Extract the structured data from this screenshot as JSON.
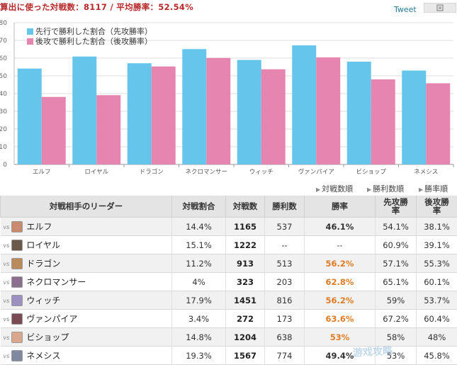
{
  "header": {
    "title": "算出に使った対戦数：8117 / 平均勝率：52.54%",
    "tweet_label": "Tweet",
    "share_icon": "share-icon"
  },
  "colors": {
    "first": "#66c5ea",
    "second": "#e585b0",
    "rate_high": "#e07b25",
    "title": "#b8292a"
  },
  "chart_data": {
    "type": "bar",
    "categories": [
      "エルフ",
      "ロイヤル",
      "ドラゴン",
      "ネクロマンサー",
      "ウィッチ",
      "ヴァンパイア",
      "ビショップ",
      "ネメシス"
    ],
    "series": [
      {
        "name": "先行で勝利した割合（先攻勝率）",
        "values": [
          54.1,
          60.9,
          57.1,
          65.1,
          59,
          67.2,
          58,
          53
        ]
      },
      {
        "name": "後攻で勝利した割合（後攻勝率）",
        "values": [
          38.1,
          39.1,
          55.3,
          60.1,
          53.7,
          60.4,
          48,
          45.8
        ]
      }
    ],
    "ylim": [
      0,
      80
    ],
    "yticks": [
      0,
      10,
      20,
      30,
      40,
      50,
      60,
      70,
      80
    ],
    "grid": true,
    "legend_position": "top-left"
  },
  "sort_links": [
    "対戦数順",
    "勝利数順",
    "勝率順"
  ],
  "table": {
    "headers": [
      "対戦相手のリーダー",
      "対戦割合",
      "対戦数",
      "勝利数",
      "勝率",
      "先攻勝率",
      "後攻勝率"
    ],
    "rows": [
      {
        "vs": "vs",
        "leader": "エルフ",
        "share": "14.4%",
        "matches": "1165",
        "wins": "537",
        "rate": "46.1%",
        "first": "54.1%",
        "second": "38.1%",
        "rate_level": "lo",
        "avatar_color": "#c98b6b"
      },
      {
        "vs": "vs",
        "leader": "ロイヤル",
        "share": "15.1%",
        "matches": "1222",
        "wins": "--",
        "rate": "--",
        "first": "60.9%",
        "second": "39.1%",
        "rate_level": "none",
        "avatar_color": "#6b5a4a"
      },
      {
        "vs": "vs",
        "leader": "ドラゴン",
        "share": "11.2%",
        "matches": "913",
        "wins": "513",
        "rate": "56.2%",
        "first": "57.1%",
        "second": "55.3%",
        "rate_level": "hi",
        "avatar_color": "#b98a5a"
      },
      {
        "vs": "vs",
        "leader": "ネクロマンサー",
        "share": "4%",
        "matches": "323",
        "wins": "203",
        "rate": "62.8%",
        "first": "65.1%",
        "second": "60.1%",
        "rate_level": "hi",
        "avatar_color": "#8a6f8f"
      },
      {
        "vs": "vs",
        "leader": "ウィッチ",
        "share": "17.9%",
        "matches": "1451",
        "wins": "816",
        "rate": "56.2%",
        "first": "59%",
        "second": "53.7%",
        "rate_level": "hi",
        "avatar_color": "#9a8fc0"
      },
      {
        "vs": "vs",
        "leader": "ヴァンパイア",
        "share": "3.4%",
        "matches": "272",
        "wins": "173",
        "rate": "63.6%",
        "first": "67.2%",
        "second": "60.4%",
        "rate_level": "hi",
        "avatar_color": "#7a4a55"
      },
      {
        "vs": "vs",
        "leader": "ビショップ",
        "share": "14.8%",
        "matches": "1204",
        "wins": "638",
        "rate": "53%",
        "first": "58%",
        "second": "48%",
        "rate_level": "hi",
        "avatar_color": "#d9a88c"
      },
      {
        "vs": "vs",
        "leader": "ネメシス",
        "share": "19.3%",
        "matches": "1567",
        "wins": "774",
        "rate": "49.4%",
        "first": "53%",
        "second": "45.8%",
        "rate_level": "lo",
        "avatar_color": "#7f8aa0"
      }
    ]
  }
}
